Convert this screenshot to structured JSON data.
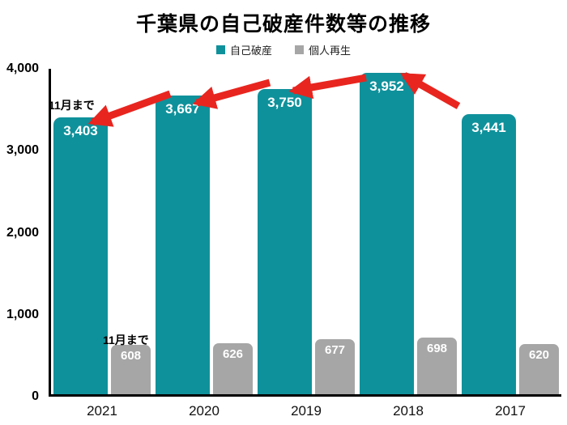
{
  "title": "千葉県の自己破産件数等の推移",
  "chart_data": {
    "type": "bar",
    "title": "千葉県の自己破産件数等の推移",
    "categories": [
      "2021",
      "2020",
      "2019",
      "2018",
      "2017"
    ],
    "series": [
      {
        "name": "自己破産",
        "color": "#0F919B",
        "values": [
          3403,
          3667,
          3750,
          3952,
          3441
        ],
        "labels": [
          "3,403",
          "3,667",
          "3,750",
          "3,952",
          "3,441"
        ]
      },
      {
        "name": "個人再生",
        "color": "#A6A6A6",
        "values": [
          608,
          626,
          677,
          698,
          620
        ],
        "labels": [
          "608",
          "626",
          "677",
          "698",
          "620"
        ]
      }
    ],
    "ylim": [
      0,
      4000
    ],
    "yticks": [
      {
        "label": "4,000",
        "value": 4000
      },
      {
        "label": "3,000",
        "value": 3000
      },
      {
        "label": "2,000",
        "value": 2000
      },
      {
        "label": "1,000",
        "value": 1000
      },
      {
        "label": "0",
        "value": 0
      }
    ],
    "grid": false,
    "legend_position": "top",
    "annotations": [
      {
        "text": "11月まで",
        "target": "2021 自己破産"
      },
      {
        "text": "11月まで",
        "target": "2021 個人再生"
      }
    ],
    "arrow_color": "#E8251F",
    "arrows": [
      {
        "from": [
          210,
          116
        ],
        "to": [
          114,
          151
        ]
      },
      {
        "from": [
          333,
          102
        ],
        "to": [
          243,
          127
        ]
      },
      {
        "from": [
          452,
          96
        ],
        "to": [
          362,
          112
        ]
      },
      {
        "from": [
          566,
          131
        ],
        "to": [
          499,
          93
        ]
      }
    ]
  }
}
